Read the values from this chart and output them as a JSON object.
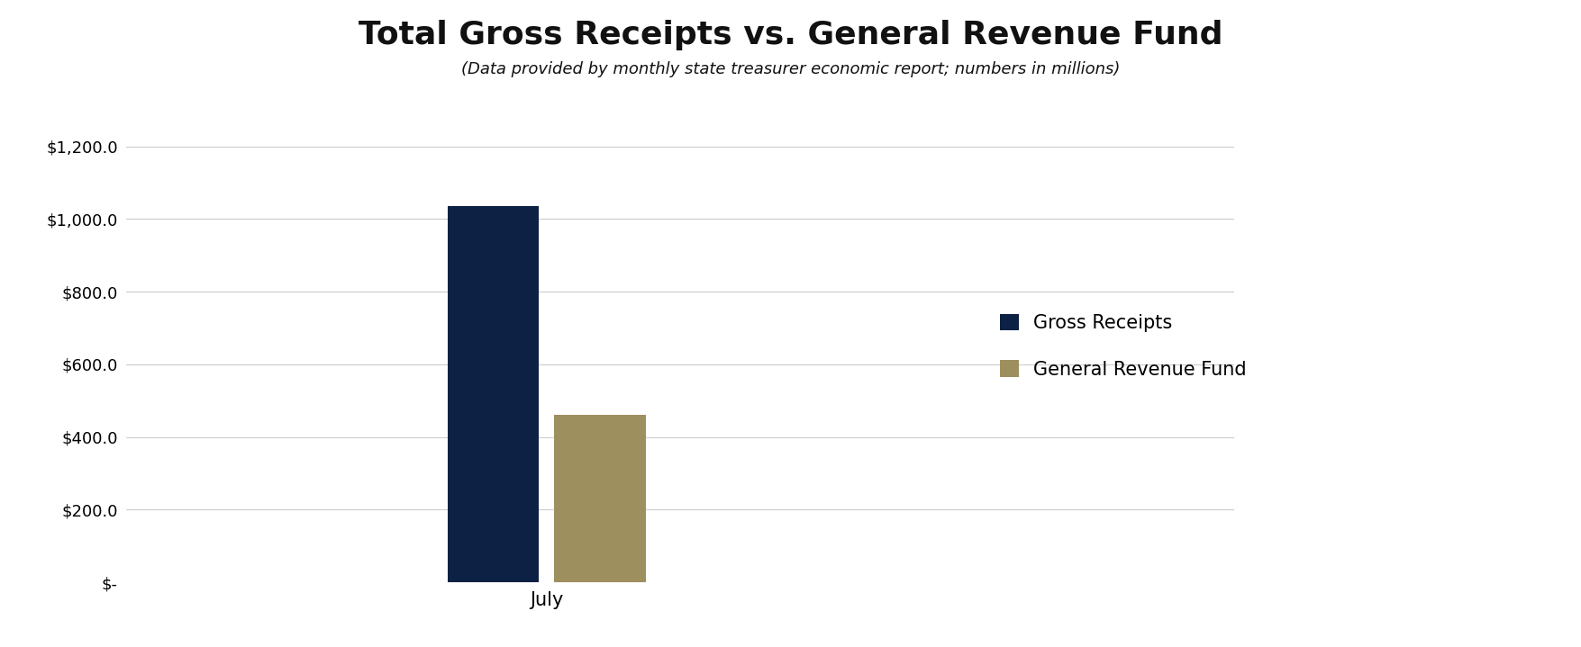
{
  "title": "Total Gross Receipts vs. General Revenue Fund",
  "subtitle": "(Data provided by monthly state treasurer economic report; numbers in millions)",
  "categories": [
    "July"
  ],
  "gross_receipts": [
    1035.0
  ],
  "general_revenue": [
    460.0
  ],
  "bar_color_gross": "#0d2145",
  "bar_color_revenue": "#9e8f5e",
  "ylim": [
    0,
    1300
  ],
  "yticks": [
    0,
    200,
    400,
    600,
    800,
    1000,
    1200
  ],
  "ytick_labels": [
    "$-",
    "$200.0",
    "$400.0",
    "$600.0",
    "$800.0",
    "$1,000.0",
    "$1,200.0"
  ],
  "legend_labels": [
    "Gross Receipts",
    "General Revenue Fund"
  ],
  "background_color": "#ffffff",
  "title_fontsize": 26,
  "subtitle_fontsize": 13,
  "tick_fontsize": 13,
  "legend_fontsize": 15,
  "xtick_fontsize": 15,
  "bar_width": 0.12,
  "bar_gap": 0.14
}
